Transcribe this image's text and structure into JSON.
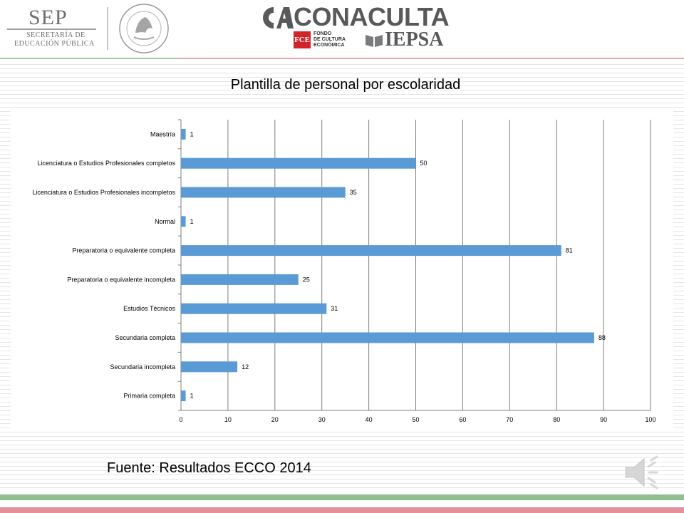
{
  "header": {
    "sep": {
      "title": "SEP",
      "line1": "SECRETARÍA DE",
      "line2": "EDUCACIÓN PÚBLICA"
    },
    "conaculta": "CONACULTA",
    "fce": {
      "mark": "FCE",
      "line1": "FONDO",
      "line2": "DE CULTURA",
      "line3": "ECONÓMICA"
    },
    "iepsa": "IEPSA"
  },
  "slide": {
    "title": "Plantilla de personal por escolaridad",
    "source": "Fuente: Resultados ECCO 2014"
  },
  "colors": {
    "bar": "#5b9bd5",
    "grid": "#7f7f7f",
    "green_band": "#8fbf91",
    "pink_band": "#e2909a"
  },
  "chart_data": {
    "type": "bar",
    "orientation": "horizontal",
    "title": "Plantilla de personal por escolaridad",
    "categories": [
      "Maestría",
      "Licenciatura o Estudios Profesionales completos",
      "Licenciatura o Estudios Profesionales incompletos",
      "Normal",
      "Preparatoria o equivalente completa",
      "Preparatoria o equivalente incompleta",
      "Estudios Técnicos",
      "Secundaria completa",
      "Secundaria incompleta",
      "Primaria completa"
    ],
    "values": [
      1,
      50,
      35,
      1,
      81,
      25,
      31,
      88,
      12,
      1
    ],
    "xlim": [
      0,
      100
    ],
    "xticks": [
      0,
      10,
      20,
      30,
      40,
      50,
      60,
      70,
      80,
      90,
      100
    ],
    "grid": true,
    "legend": "none",
    "data_labels": true
  }
}
